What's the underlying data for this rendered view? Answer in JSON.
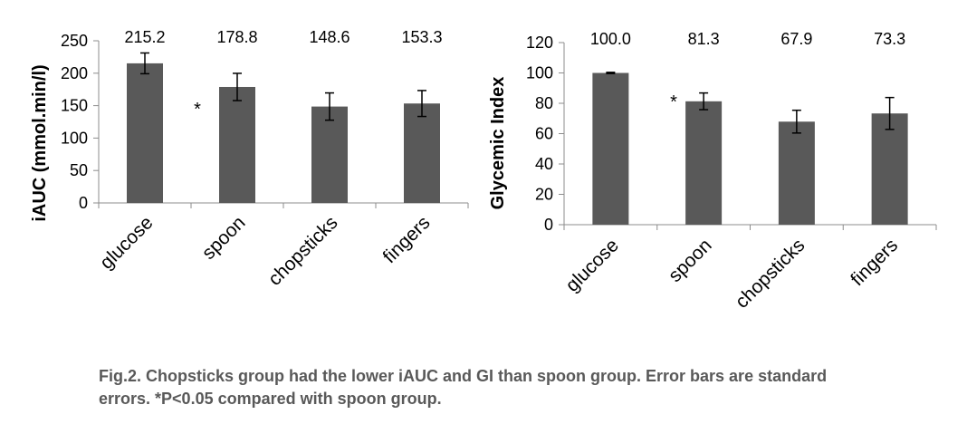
{
  "chart_data": [
    {
      "type": "bar",
      "categories": [
        "glucose",
        "spoon",
        "chopsticks",
        "fingers"
      ],
      "values": [
        215.2,
        178.8,
        148.6,
        153.3
      ],
      "errors": [
        16,
        21,
        21,
        20
      ],
      "data_labels": [
        "215.2",
        "178.8",
        "148.6",
        "153.3"
      ],
      "ylabel": "iAUC (mmol.min/l)",
      "ylim": [
        0,
        250
      ],
      "yticks": [
        0,
        50,
        100,
        150,
        200,
        250
      ],
      "annotation": "*",
      "bar_color": "#595959",
      "grid": false,
      "legend": "none"
    },
    {
      "type": "bar",
      "categories": [
        "glucose",
        "spoon",
        "chopsticks",
        "fingers"
      ],
      "values": [
        100.0,
        81.3,
        67.9,
        73.3
      ],
      "errors": [
        0.4,
        5.5,
        7.5,
        10.5
      ],
      "data_labels": [
        "100.0",
        "81.3",
        "67.9",
        "73.3"
      ],
      "ylabel": "Glycemic Index",
      "ylim": [
        0,
        120
      ],
      "yticks": [
        0,
        20,
        40,
        60,
        80,
        100,
        120
      ],
      "annotation": "*",
      "bar_color": "#595959",
      "grid": false,
      "legend": "none"
    }
  ],
  "caption": {
    "line1": "Fig.2. Chopsticks group had the lower iAUC and GI than spoon group. Error bars are standard",
    "line2": "errors. *P<0.05 compared with spoon group."
  }
}
